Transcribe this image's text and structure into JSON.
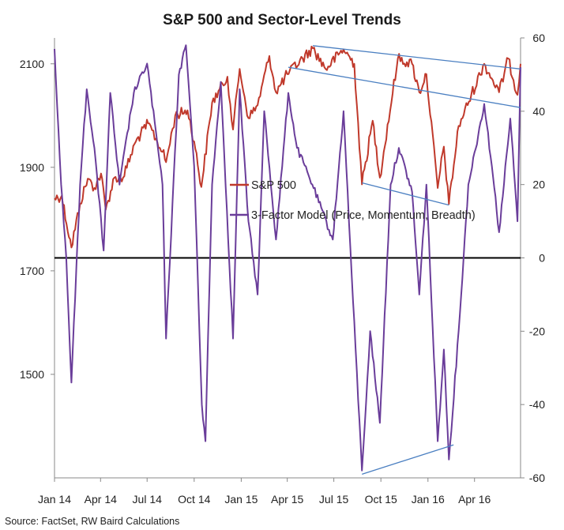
{
  "chart_data": {
    "type": "line",
    "title": "S&P 500 and Sector-Level Trends",
    "source": "Source: FactSet, RW Baird Calculations",
    "x_ticks": [
      "Jan 14",
      "Apr 14",
      "Jul 14",
      "Oct 14",
      "Jan 15",
      "Apr 15",
      "Jul 15",
      "Oct 15",
      "Jan 16",
      "Apr 16"
    ],
    "x_range": [
      "2014-01-01",
      "2016-06-30"
    ],
    "left_axis": {
      "ticks": [
        1500,
        1700,
        1900,
        2100
      ],
      "range": [
        1300,
        2150
      ]
    },
    "right_axis": {
      "ticks": [
        -60,
        -40,
        -20,
        0,
        20,
        40,
        60
      ],
      "range": [
        -60,
        60
      ]
    },
    "zero_line": 0,
    "series": [
      {
        "name": "S&P 500",
        "axis": "left",
        "color": "#c0392b",
        "points": [
          [
            "2014-01-01",
            1840
          ],
          [
            "2014-01-15",
            1845
          ],
          [
            "2014-02-03",
            1745
          ],
          [
            "2014-02-20",
            1830
          ],
          [
            "2014-03-07",
            1878
          ],
          [
            "2014-03-20",
            1860
          ],
          [
            "2014-04-02",
            1888
          ],
          [
            "2014-04-11",
            1818
          ],
          [
            "2014-04-28",
            1880
          ],
          [
            "2014-05-15",
            1880
          ],
          [
            "2014-06-09",
            1950
          ],
          [
            "2014-07-03",
            1985
          ],
          [
            "2014-07-31",
            1930
          ],
          [
            "2014-08-07",
            1910
          ],
          [
            "2014-08-25",
            2000
          ],
          [
            "2014-09-18",
            2010
          ],
          [
            "2014-10-01",
            1950
          ],
          [
            "2014-10-15",
            1862
          ],
          [
            "2014-11-05",
            2025
          ],
          [
            "2014-12-05",
            2075
          ],
          [
            "2014-12-16",
            1973
          ],
          [
            "2014-12-29",
            2090
          ],
          [
            "2015-01-15",
            1995
          ],
          [
            "2015-02-02",
            2020
          ],
          [
            "2015-02-25",
            2115
          ],
          [
            "2015-03-10",
            2045
          ],
          [
            "2015-04-01",
            2080
          ],
          [
            "2015-05-21",
            2130
          ],
          [
            "2015-06-15",
            2090
          ],
          [
            "2015-07-20",
            2128
          ],
          [
            "2015-08-10",
            2100
          ],
          [
            "2015-08-25",
            1867
          ],
          [
            "2015-09-15",
            1990
          ],
          [
            "2015-09-29",
            1880
          ],
          [
            "2015-11-03",
            2110
          ],
          [
            "2015-12-01",
            2100
          ],
          [
            "2015-12-15",
            2045
          ],
          [
            "2015-12-29",
            2080
          ],
          [
            "2016-01-20",
            1860
          ],
          [
            "2016-02-01",
            1940
          ],
          [
            "2016-02-11",
            1829
          ],
          [
            "2016-03-01",
            1980
          ],
          [
            "2016-04-20",
            2100
          ],
          [
            "2016-05-19",
            2045
          ],
          [
            "2016-06-06",
            2110
          ],
          [
            "2016-06-24",
            2040
          ],
          [
            "2016-06-30",
            2100
          ]
        ]
      },
      {
        "name": "3-Factor Model (Price, Momentum, Breadth)",
        "axis": "right",
        "color": "#6a3d9a",
        "points": [
          [
            "2014-01-01",
            57
          ],
          [
            "2014-01-14",
            20
          ],
          [
            "2014-01-24",
            0
          ],
          [
            "2014-02-03",
            -34
          ],
          [
            "2014-02-20",
            20
          ],
          [
            "2014-03-05",
            46
          ],
          [
            "2014-03-20",
            30
          ],
          [
            "2014-04-07",
            2
          ],
          [
            "2014-04-20",
            45
          ],
          [
            "2014-05-08",
            20
          ],
          [
            "2014-06-05",
            45
          ],
          [
            "2014-07-01",
            53
          ],
          [
            "2014-07-31",
            20
          ],
          [
            "2014-08-07",
            -22
          ],
          [
            "2014-09-01",
            50
          ],
          [
            "2014-09-15",
            58
          ],
          [
            "2014-10-01",
            25
          ],
          [
            "2014-10-16",
            -40
          ],
          [
            "2014-10-23",
            -50
          ],
          [
            "2014-11-05",
            20
          ],
          [
            "2014-11-22",
            48
          ],
          [
            "2014-12-16",
            -22
          ],
          [
            "2014-12-29",
            46
          ],
          [
            "2015-01-15",
            10
          ],
          [
            "2015-02-02",
            -10
          ],
          [
            "2015-02-15",
            40
          ],
          [
            "2015-03-10",
            5
          ],
          [
            "2015-04-03",
            45
          ],
          [
            "2015-04-20",
            30
          ],
          [
            "2015-05-20",
            20
          ],
          [
            "2015-06-29",
            5
          ],
          [
            "2015-07-20",
            40
          ],
          [
            "2015-08-05",
            -5
          ],
          [
            "2015-08-25",
            -58
          ],
          [
            "2015-09-10",
            -20
          ],
          [
            "2015-09-29",
            -45
          ],
          [
            "2015-10-20",
            20
          ],
          [
            "2015-11-05",
            30
          ],
          [
            "2015-12-01",
            18
          ],
          [
            "2015-12-15",
            -10
          ],
          [
            "2015-12-29",
            20
          ],
          [
            "2016-01-20",
            -50
          ],
          [
            "2016-02-01",
            -25
          ],
          [
            "2016-02-11",
            -55
          ],
          [
            "2016-03-01",
            -20
          ],
          [
            "2016-03-20",
            20
          ],
          [
            "2016-04-20",
            42
          ],
          [
            "2016-05-05",
            25
          ],
          [
            "2016-05-19",
            7
          ],
          [
            "2016-06-10",
            38
          ],
          [
            "2016-06-24",
            10
          ],
          [
            "2016-06-30",
            52
          ]
        ]
      }
    ],
    "trendlines": [
      {
        "axis": "left",
        "color": "#4a7fc1",
        "from": [
          "2015-05-21",
          2135
        ],
        "to": [
          "2016-06-30",
          2090
        ]
      },
      {
        "axis": "left",
        "color": "#4a7fc1",
        "from": [
          "2015-08-25",
          1870
        ],
        "to": [
          "2016-02-11",
          1827
        ]
      },
      {
        "axis": "right",
        "color": "#4a7fc1",
        "from": [
          "2015-04-03",
          52
        ],
        "to": [
          "2016-06-30",
          41
        ]
      },
      {
        "axis": "right",
        "color": "#4a7fc1",
        "from": [
          "2015-08-25",
          -59
        ],
        "to": [
          "2016-02-20",
          -51
        ]
      }
    ],
    "legend": {
      "placement": "center"
    }
  }
}
